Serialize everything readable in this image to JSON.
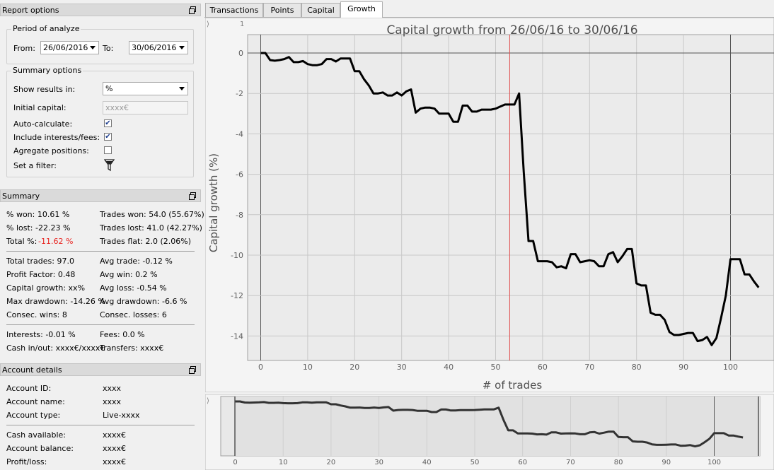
{
  "report_options": {
    "title": "Report options",
    "period": {
      "title": "Period of analyze",
      "from_label": "From:",
      "from_value": "26/06/2016",
      "to_label": "To:",
      "to_value": "30/06/2016"
    },
    "summary_options": {
      "title": "Summary options",
      "show_results_label": "Show results in:",
      "show_results_value": "%",
      "initial_capital_label": "Initial capital:",
      "initial_capital_placeholder": "xxxx€",
      "auto_calc_label": "Auto-calculate:",
      "auto_calc_checked": true,
      "include_fees_label": "Include interests/fees:",
      "include_fees_checked": true,
      "aggregate_label": "Agregate positions:",
      "aggregate_checked": false,
      "filter_label": "Set a filter:"
    }
  },
  "summary": {
    "title": "Summary",
    "pct_won": "% won: 10.61 %",
    "pct_lost": "% lost: -22.23 %",
    "total_pct_label": "Total %:",
    "total_pct_value": "-11.62 %",
    "trades_won": "Trades won: 54.0 (55.67%)",
    "trades_lost": "Trades lost: 41.0 (42.27%)",
    "trades_flat": "Trades flat: 2.0 (2.06%)",
    "total_trades": "Total trades: 97.0",
    "profit_factor": "Profit Factor: 0.48",
    "capital_growth": "Capital growth: xx%",
    "max_drawdown": "Max drawdown: -14.26 %",
    "consec_wins": "Consec. wins: 8",
    "avg_trade": "Avg trade: -0.12 %",
    "avg_win": "Avg win: 0.2 %",
    "avg_loss": "Avg loss: -0.54 %",
    "avg_drawdown": "Avg drawdown: -6.6 %",
    "consec_losses": "Consec. losses: 6",
    "interests": "Interests: -0.01 %",
    "fees": "Fees: 0.0 %",
    "cash_inout": "Cash in/out: xxxx€/xxxx€",
    "transfers": "Transfers: xxxx€"
  },
  "account": {
    "title": "Account details",
    "id_label": "Account ID:",
    "id_value": "xxxx",
    "name_label": "Account name:",
    "name_value": "xxxx",
    "type_label": "Account type:",
    "type_value": "Live-xxxx",
    "cash_label": "Cash available:",
    "cash_value": "xxxx€",
    "balance_label": "Account balance:",
    "balance_value": "xxxx€",
    "pl_label": "Profit/loss:",
    "pl_value": "xxxx€"
  },
  "tabs": [
    "Transactions",
    "Points",
    "Capital",
    "Growth"
  ],
  "active_tab": "Growth",
  "colors": {
    "accent_red": "#e8231f",
    "marker_red": "#e05050",
    "line": "#000000"
  },
  "chart_data": {
    "type": "line",
    "title": "Capital growth from 26/06/16 to 30/06/16",
    "xlabel": "# of trades",
    "ylabel": "Capital growth (%)",
    "xlim": [
      -3,
      107
    ],
    "ylim": [
      -15,
      1.5
    ],
    "x_ticks": [
      "0",
      "10",
      "20",
      "30",
      "40",
      "50",
      "60",
      "70",
      "80",
      "90",
      "100"
    ],
    "y_ticks": [
      "0",
      "-2",
      "-4",
      "-6",
      "-8",
      "-10",
      "-12",
      "-14"
    ],
    "top_left_label": "1",
    "marker_x": 53,
    "x": [
      0,
      1,
      2,
      3,
      4,
      5,
      6,
      7,
      8,
      9,
      10,
      11,
      12,
      13,
      14,
      15,
      16,
      17,
      18,
      19,
      20,
      21,
      22,
      23,
      24,
      25,
      26,
      27,
      28,
      29,
      30,
      31,
      32,
      33,
      34,
      35,
      36,
      37,
      38,
      39,
      40,
      41,
      42,
      43,
      44,
      45,
      46,
      47,
      48,
      49,
      50,
      51,
      52,
      53,
      54,
      55,
      56,
      57,
      58,
      59,
      60,
      61,
      62,
      63,
      64,
      65,
      66,
      67,
      68,
      69,
      70,
      71,
      72,
      73,
      74,
      75,
      76,
      77,
      78,
      79,
      80,
      81,
      82,
      83,
      84,
      85,
      86,
      87,
      88,
      89,
      90,
      91,
      92,
      93,
      94,
      95,
      96,
      97,
      98,
      99,
      100,
      101,
      102,
      103,
      104,
      105,
      106
    ],
    "series": [
      {
        "values": [
          0,
          0,
          -0.35,
          -0.38,
          -0.35,
          -0.3,
          -0.2,
          -0.45,
          -0.45,
          -0.4,
          -0.55,
          -0.6,
          -0.6,
          -0.55,
          -0.3,
          -0.3,
          -0.42,
          -0.27,
          -0.27,
          -0.27,
          -0.9,
          -0.9,
          -1.3,
          -1.6,
          -2.0,
          -2.0,
          -1.95,
          -2.1,
          -2.1,
          -1.95,
          -2.1,
          -1.9,
          -1.8,
          -2.95,
          -2.75,
          -2.7,
          -2.7,
          -2.75,
          -3.0,
          -3.0,
          -3.0,
          -3.4,
          -3.4,
          -2.6,
          -2.6,
          -2.9,
          -2.9,
          -2.8,
          -2.8,
          -2.8,
          -2.75,
          -2.65,
          -2.55,
          -2.55,
          -2.55,
          -2.0,
          -5.9,
          -9.3,
          -9.3,
          -10.3,
          -10.3,
          -10.3,
          -10.35,
          -10.6,
          -10.55,
          -10.65,
          -9.95,
          -9.95,
          -10.35,
          -10.3,
          -10.25,
          -10.3,
          -10.55,
          -10.55,
          -9.95,
          -9.85,
          -10.35,
          -10.05,
          -9.7,
          -9.7,
          -11.4,
          -11.5,
          -11.5,
          -12.85,
          -12.95,
          -12.95,
          -13.2,
          -13.8,
          -13.95,
          -13.95,
          -13.9,
          -13.85,
          -13.85,
          -14.25,
          -14.2,
          -14.05,
          -14.45,
          -14.1,
          -13.1,
          -12.0,
          -10.2,
          -10.2,
          -10.2,
          -10.95,
          -10.95,
          -11.3,
          -11.6
        ]
      }
    ]
  },
  "navigator": {
    "x_ticks": [
      "0",
      "10",
      "20",
      "30",
      "40",
      "50",
      "60",
      "70",
      "80",
      "90",
      "100"
    ]
  }
}
